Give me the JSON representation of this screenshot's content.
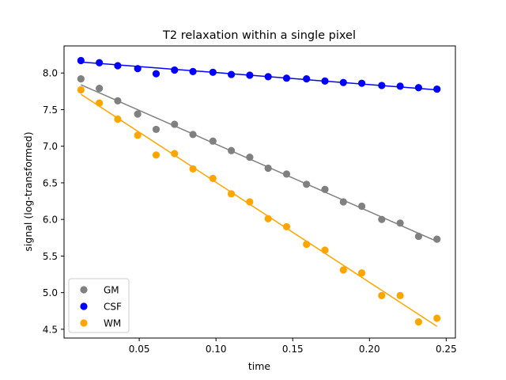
{
  "chart_data": {
    "type": "scatter",
    "title": "T2 relaxation within a single pixel",
    "xlabel": "time",
    "ylabel": "signal (log-transformed)",
    "xlim": [
      0.001,
      0.256
    ],
    "ylim": [
      4.38,
      8.37
    ],
    "x_ticks": [
      0.05,
      0.1,
      0.15,
      0.2,
      0.25
    ],
    "x_tick_labels": [
      "0.05",
      "0.10",
      "0.15",
      "0.20",
      "0.25"
    ],
    "y_ticks": [
      4.5,
      5.0,
      5.5,
      6.0,
      6.5,
      7.0,
      7.5,
      8.0
    ],
    "y_tick_labels": [
      "4.5",
      "5.0",
      "5.5",
      "6.0",
      "6.5",
      "7.0",
      "7.5",
      "8.0"
    ],
    "grid": false,
    "legend_position": "lower-left",
    "x": [
      0.012,
      0.024,
      0.036,
      0.049,
      0.061,
      0.073,
      0.085,
      0.098,
      0.11,
      0.122,
      0.134,
      0.146,
      0.159,
      0.171,
      0.183,
      0.195,
      0.208,
      0.22,
      0.232,
      0.244
    ],
    "series": [
      {
        "name": "GM",
        "color": "#808080",
        "values": [
          7.92,
          7.79,
          7.62,
          7.44,
          7.23,
          7.3,
          7.16,
          7.07,
          6.94,
          6.85,
          6.7,
          6.62,
          6.48,
          6.41,
          6.24,
          6.18,
          6.0,
          5.95,
          5.77,
          5.73
        ],
        "fit": [
          7.84,
          5.7
        ]
      },
      {
        "name": "CSF",
        "color": "#0000ff",
        "values": [
          8.17,
          8.14,
          8.1,
          8.06,
          7.99,
          8.04,
          8.02,
          8.01,
          7.98,
          7.97,
          7.95,
          7.93,
          7.92,
          7.89,
          7.87,
          7.86,
          7.83,
          7.82,
          7.8,
          7.78
        ],
        "fit": [
          8.15,
          7.77
        ]
      },
      {
        "name": "WM",
        "color": "#ffa500",
        "values": [
          7.77,
          7.59,
          7.37,
          7.15,
          6.88,
          6.9,
          6.69,
          6.56,
          6.35,
          6.24,
          6.01,
          5.9,
          5.66,
          5.58,
          5.31,
          5.27,
          4.96,
          4.96,
          4.6,
          4.65
        ],
        "fit": [
          7.71,
          4.54
        ]
      }
    ]
  }
}
